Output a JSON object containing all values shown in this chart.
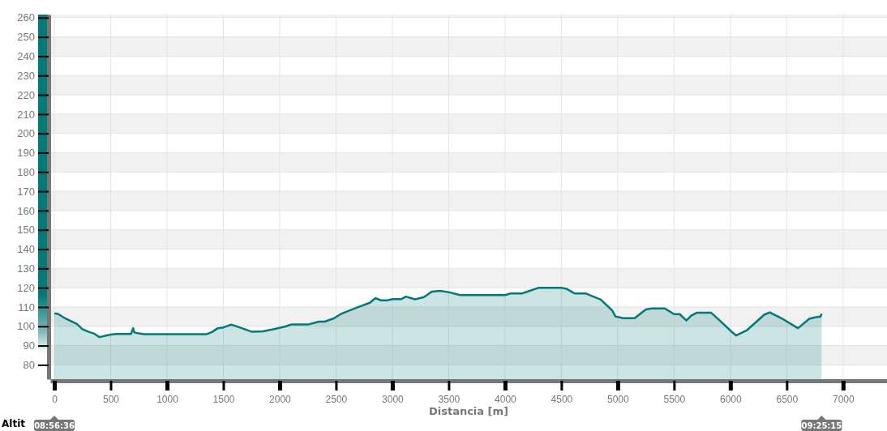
{
  "chart_data": {
    "type": "area",
    "xlabel": "Distancia [m]",
    "ylabel": "Altit",
    "x": [
      0,
      30,
      100,
      200,
      250,
      300,
      350,
      400,
      450,
      500,
      550,
      680,
      700,
      710,
      750,
      800,
      1350,
      1400,
      1450,
      1500,
      1570,
      1650,
      1750,
      1850,
      1950,
      2050,
      2100,
      2250,
      2350,
      2400,
      2480,
      2550,
      2700,
      2800,
      2850,
      2900,
      2950,
      3000,
      3080,
      3120,
      3200,
      3280,
      3350,
      3420,
      3500,
      3600,
      4000,
      4050,
      4150,
      4300,
      4500,
      4550,
      4620,
      4720,
      4780,
      4850,
      4950,
      4980,
      5050,
      5150,
      5250,
      5300,
      5420,
      5500,
      5550,
      5610,
      5650,
      5700,
      5830,
      5900,
      6000,
      6050,
      6150,
      6300,
      6350,
      6450,
      6600,
      6700,
      6750,
      6800,
      6810
    ],
    "series": [
      {
        "color": "#007a78",
        "values": [
          106.6,
          106.5,
          104,
          101.2,
          98.5,
          97.2,
          96.3,
          94.4,
          95.1,
          95.7,
          96,
          96,
          99,
          96.8,
          96.3,
          95.9,
          95.9,
          97,
          99,
          99.4,
          100.9,
          99.3,
          97.2,
          97.4,
          98.5,
          99.9,
          100.9,
          100.9,
          102.4,
          102.4,
          104.1,
          106.6,
          110,
          112.2,
          114.6,
          113.4,
          113.4,
          114.1,
          114.1,
          115.4,
          114,
          115.1,
          118,
          118.4,
          117.7,
          116.2,
          116.2,
          117,
          117,
          120,
          120,
          119.3,
          117,
          117,
          115.5,
          113.8,
          108.3,
          105.1,
          104.2,
          104.2,
          108.7,
          109.2,
          109.2,
          106.3,
          106.3,
          103,
          105.4,
          107,
          107,
          103.3,
          97.8,
          95.2,
          98.1,
          106,
          107.2,
          104.3,
          99,
          103.9,
          104.6,
          105,
          106.5
        ]
      }
    ],
    "xlim": [
      -36,
      7390
    ],
    "ylim": [
      72.6,
      261.6
    ],
    "xticks": [
      0,
      500,
      1000,
      1500,
      2000,
      2500,
      3000,
      3500,
      4000,
      4500,
      5000,
      5500,
      6000,
      6500,
      7000
    ],
    "yticks": [
      80,
      90,
      100,
      110,
      120,
      130,
      140,
      150,
      160,
      170,
      180,
      190,
      200,
      210,
      220,
      230,
      240,
      250,
      260
    ],
    "grid": true,
    "annotations": [
      "08:56:36",
      "09:25:15"
    ]
  }
}
